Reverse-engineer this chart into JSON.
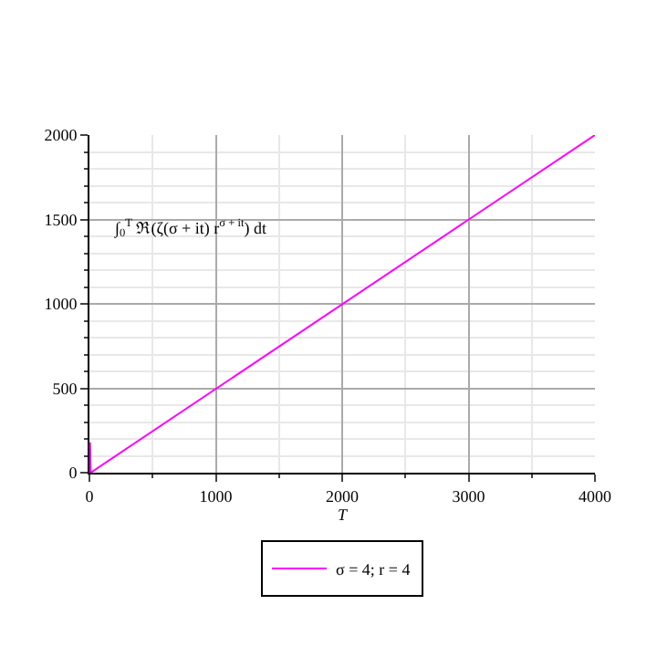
{
  "chart_data": {
    "type": "line",
    "xlabel": "T",
    "ylabel": "∫$_{0}$$^{T}$ ℜ(ζ(σ + it) r$^{σ + it}$) dt",
    "series": [
      {
        "name": "σ = 4; r = 4",
        "color": "#ff00ff",
        "x": [
          0,
          5,
          10,
          4000
        ],
        "values": [
          0,
          180,
          0,
          2000
        ]
      }
    ],
    "xlim": [
      0,
      4000
    ],
    "xticks": [
      0,
      1000,
      2000,
      3000,
      4000
    ],
    "ylim": [
      0,
      2000
    ],
    "yticks": [
      0,
      500,
      1000,
      1500,
      2000
    ],
    "grid": true,
    "legend": "bottom",
    "marker": "none",
    "line_style": "solid"
  }
}
